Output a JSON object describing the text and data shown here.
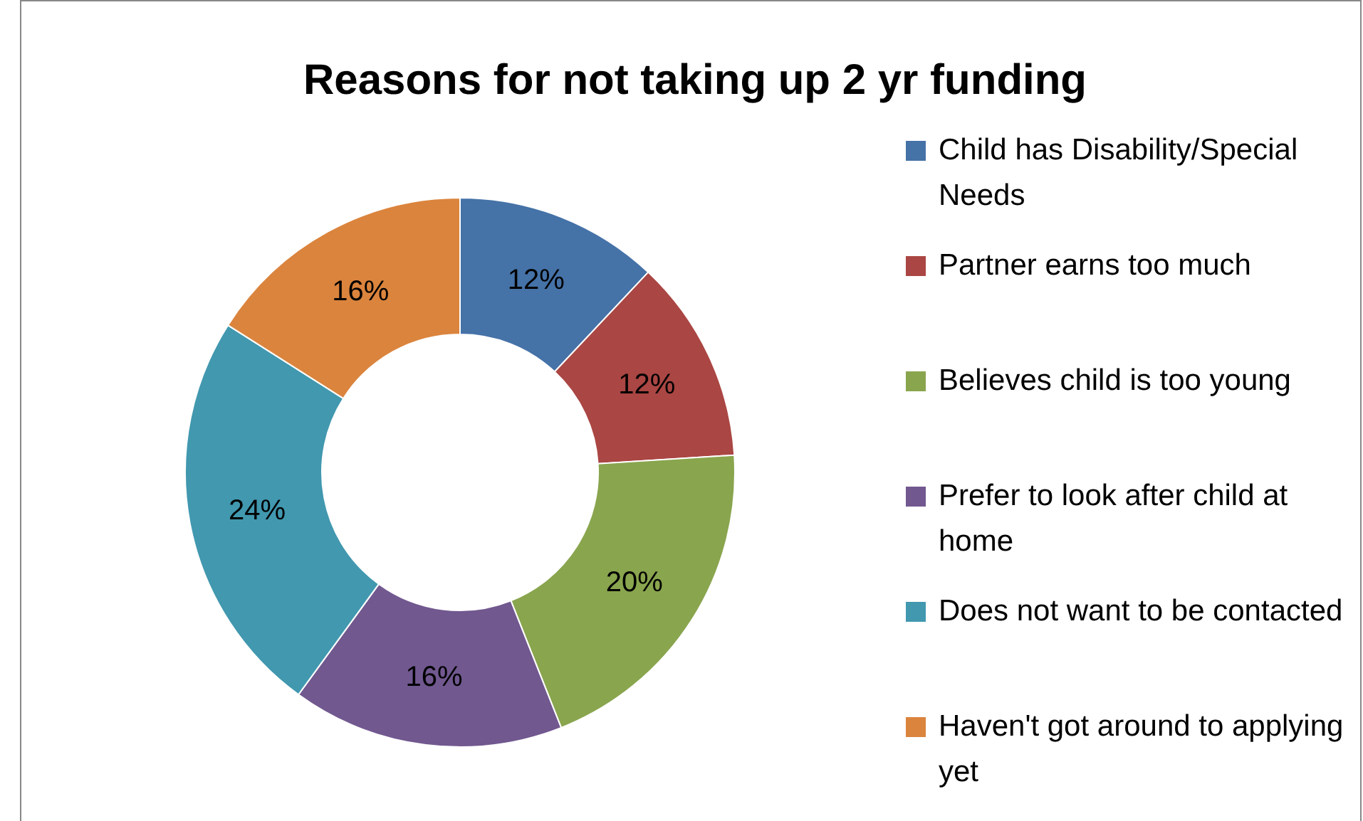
{
  "chart_data": {
    "type": "donut",
    "title": "Reasons for not taking up 2 yr funding",
    "categories": [
      "Child has Disability/Special Needs",
      "Partner earns too much",
      "Believes child is too young",
      "Prefer to look after child at home",
      "Does not want to be contacted",
      "Haven't got around to applying yet"
    ],
    "values": [
      12,
      12,
      20,
      16,
      24,
      16
    ],
    "value_labels": [
      "12%",
      "12%",
      "20%",
      "16%",
      "24%",
      "16%"
    ],
    "colors": [
      "#4572a7",
      "#aa4643",
      "#89a54e",
      "#71588f",
      "#4198af",
      "#db843d"
    ],
    "legend": "right"
  }
}
